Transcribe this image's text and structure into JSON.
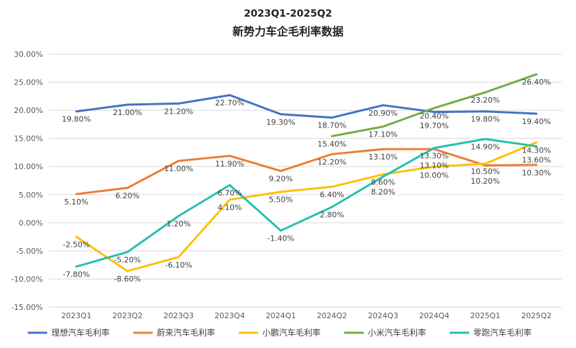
{
  "chart_data": {
    "type": "line",
    "title": "2023Q1-2025Q2",
    "subtitle": "新势力车企毛利率数据",
    "categories": [
      "2023Q1",
      "2023Q2",
      "2023Q3",
      "2023Q4",
      "2024Q1",
      "2024Q2",
      "2024Q3",
      "2024Q4",
      "2025Q1",
      "2025Q2"
    ],
    "ylim": [
      -15,
      30
    ],
    "yticks": [
      "30.00%",
      "25.00%",
      "20.00%",
      "15.00%",
      "10.00%",
      "5.00%",
      "0.00%",
      "-5.00%",
      "-10.00%",
      "-15.00%"
    ],
    "grid": true,
    "legend": "bottom",
    "series": [
      {
        "name": "理想汽车毛利率",
        "color": "#4472C4",
        "values": [
          19.8,
          21.0,
          21.2,
          22.7,
          19.3,
          18.7,
          20.9,
          19.7,
          19.8,
          19.4
        ],
        "labels": [
          "19.80%",
          "21.00%",
          "21.20%",
          "22.70%",
          "19.30%",
          "18.70%",
          "20.90%",
          "19.70%",
          "19.80%",
          "19.40%"
        ]
      },
      {
        "name": "蔚来汽车毛利率",
        "color": "#ED7D31",
        "values": [
          5.1,
          6.2,
          11.0,
          11.9,
          9.2,
          12.2,
          13.1,
          13.1,
          10.2,
          10.3
        ],
        "labels": [
          "5.10%",
          "6.20%",
          "11.00%",
          "11.90%",
          "9.20%",
          "12.20%",
          "13.10%",
          "13.10%",
          "10.20%",
          "10.30%"
        ]
      },
      {
        "name": "小鹏汽车毛利率",
        "color": "#FFC000",
        "values": [
          -2.5,
          -8.6,
          -6.1,
          4.1,
          5.5,
          6.4,
          8.6,
          10.0,
          10.5,
          14.3
        ],
        "labels": [
          "-2.50%",
          "-8.60%",
          "-6.10%",
          "4.10%",
          "5.50%",
          "6.40%",
          "8.60%",
          "10.00%",
          "10.50%",
          "14.30%"
        ]
      },
      {
        "name": "小米汽车毛利率",
        "color": "#70AD47",
        "values": [
          null,
          null,
          null,
          null,
          null,
          15.4,
          17.1,
          20.4,
          23.2,
          26.4
        ],
        "labels": [
          "",
          "",
          "",
          "",
          "",
          "15.40%",
          "17.10%",
          "20.40%",
          "23.20%",
          "26.40%"
        ]
      },
      {
        "name": "零跑汽车毛利率",
        "color": "#26BFAF",
        "values": [
          -7.8,
          -5.2,
          1.2,
          6.7,
          -1.4,
          2.8,
          8.2,
          13.3,
          14.9,
          13.6
        ],
        "labels": [
          "-7.80%",
          "-5.20%",
          "1.20%",
          "6.70%",
          "-1.40%",
          "2.80%",
          "8.20%",
          "13.30%",
          "14.90%",
          "13.60%"
        ]
      }
    ]
  }
}
